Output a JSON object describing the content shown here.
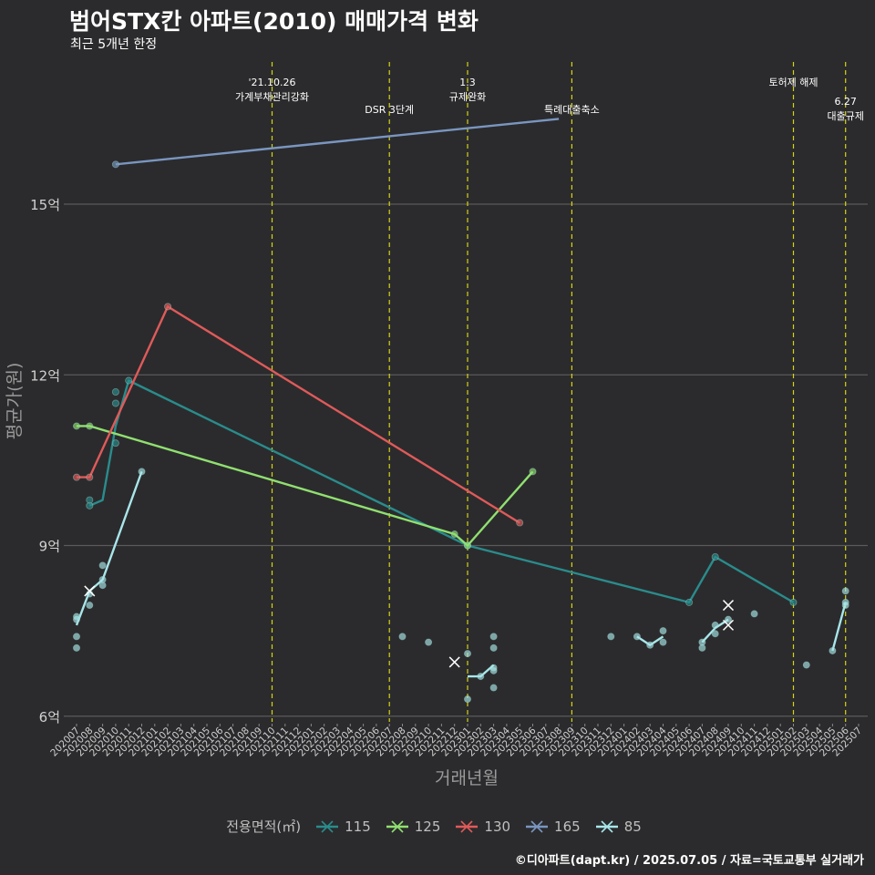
{
  "title": "범어STX칸 아파트(2010) 매매가격 변화",
  "subtitle": "최근 5개년 한정",
  "caption": "©디아파트(dapt.kr) / 2025.07.05 / 자료=국토교통부 실거래가",
  "legend": {
    "title": "전용면적(㎡)",
    "items": [
      {
        "label": "115",
        "color": "#2a8c8c"
      },
      {
        "label": "125",
        "color": "#90e070"
      },
      {
        "label": "130",
        "color": "#e05a5a"
      },
      {
        "label": "165",
        "color": "#7a96c0"
      },
      {
        "label": "85",
        "color": "#a8e6ea"
      }
    ]
  },
  "chart_data": {
    "type": "line",
    "xlabel": "거래년월",
    "ylabel": "평균가(원)",
    "ylim": [
      5.9,
      17.5
    ],
    "yticks": [
      6,
      9,
      12,
      15
    ],
    "ytick_labels": [
      "6억",
      "9억",
      "12억",
      "15억"
    ],
    "grid": true,
    "x": [
      "202007",
      "202008",
      "202009",
      "202010",
      "202011",
      "202012",
      "202101",
      "202102",
      "202103",
      "202104",
      "202105",
      "202106",
      "202107",
      "202108",
      "202109",
      "202110",
      "202111",
      "202112",
      "202201",
      "202202",
      "202203",
      "202204",
      "202205",
      "202206",
      "202207",
      "202208",
      "202209",
      "202210",
      "202211",
      "202212",
      "202301",
      "202302",
      "202303",
      "202304",
      "202305",
      "202306",
      "202307",
      "202308",
      "202309",
      "202310",
      "202311",
      "202312",
      "202401",
      "202402",
      "202403",
      "202404",
      "202405",
      "202406",
      "202407",
      "202408",
      "202409",
      "202410",
      "202411",
      "202412",
      "202501",
      "202502",
      "202503",
      "202504",
      "202505",
      "202506",
      "202507"
    ],
    "annotations": [
      {
        "x": "202110",
        "lines": [
          "'21.10.26",
          "가계부채관리강화"
        ],
        "level": 1
      },
      {
        "x": "202207",
        "lines": [
          "DSR 3단계"
        ],
        "level": 2
      },
      {
        "x": "202301",
        "lines": [
          "1.3",
          "규제완화"
        ],
        "level": 1
      },
      {
        "x": "202309",
        "lines": [
          "특례대출축소"
        ],
        "level": 2
      },
      {
        "x": "202502",
        "lines": [
          "토허제 해제"
        ],
        "level": 1
      },
      {
        "x": "202506",
        "lines": [
          "6.27",
          "대출규제"
        ],
        "level": 3
      }
    ],
    "series": [
      {
        "name": "115",
        "color": "#2a8c8c",
        "line": [
          [
            "202008",
            9.7
          ],
          [
            "202009",
            9.8
          ],
          [
            "202010",
            11.1
          ],
          [
            "202011",
            11.9
          ],
          [
            "202301",
            9.0
          ],
          [
            "202406",
            8.0
          ],
          [
            "202408",
            8.8
          ],
          [
            "202502",
            8.0
          ]
        ],
        "points": [
          [
            "202008",
            9.7
          ],
          [
            "202008",
            9.8
          ],
          [
            "202010",
            10.8
          ],
          [
            "202010",
            11.5
          ],
          [
            "202010",
            11.7
          ],
          [
            "202011",
            11.9
          ],
          [
            "202301",
            9.0
          ],
          [
            "202406",
            8.0
          ],
          [
            "202408",
            8.8
          ],
          [
            "202502",
            8.0
          ]
        ]
      },
      {
        "name": "125",
        "color": "#90e070",
        "line": [
          [
            "202007",
            11.1
          ],
          [
            "202008",
            11.1
          ],
          [
            "202212",
            9.2
          ],
          [
            "202301",
            9.0
          ],
          [
            "202306",
            10.3
          ]
        ],
        "points": [
          [
            "202007",
            11.1
          ],
          [
            "202008",
            11.1
          ],
          [
            "202212",
            9.2
          ],
          [
            "202301",
            9.0
          ],
          [
            "202306",
            10.3
          ]
        ]
      },
      {
        "name": "130",
        "color": "#e05a5a",
        "line": [
          [
            "202007",
            10.2
          ],
          [
            "202008",
            10.2
          ],
          [
            "202102",
            13.2
          ],
          [
            "202305",
            9.4
          ]
        ],
        "points": [
          [
            "202007",
            10.2
          ],
          [
            "202008",
            10.2
          ],
          [
            "202102",
            13.2
          ],
          [
            "202305",
            9.4
          ]
        ]
      },
      {
        "name": "165",
        "color": "#7a96c0",
        "line": [
          [
            "202010",
            15.7
          ],
          [
            "202308",
            16.5
          ]
        ],
        "points": [
          [
            "202010",
            15.7
          ]
        ]
      },
      {
        "name": "85",
        "color": "#a8e6ea",
        "line_segments": [
          [
            [
              "202007",
              7.6
            ],
            [
              "202008",
              8.2
            ],
            [
              "202009",
              8.4
            ],
            [
              "202012",
              10.3
            ]
          ],
          [
            [
              "202301",
              6.7
            ],
            [
              "202302",
              6.7
            ],
            [
              "202303",
              6.9
            ]
          ],
          [
            [
              "202402",
              7.4
            ],
            [
              "202403",
              7.25
            ],
            [
              "202404",
              7.4
            ]
          ],
          [
            [
              "202407",
              7.3
            ],
            [
              "202408",
              7.55
            ],
            [
              "202409",
              7.7
            ]
          ],
          [
            [
              "202505",
              7.15
            ],
            [
              "202506",
              8.0
            ]
          ]
        ],
        "points": [
          [
            "202007",
            7.2
          ],
          [
            "202007",
            7.4
          ],
          [
            "202007",
            7.7
          ],
          [
            "202007",
            7.75
          ],
          [
            "202008",
            7.95
          ],
          [
            "202008",
            8.15
          ],
          [
            "202009",
            8.3
          ],
          [
            "202009",
            8.4
          ],
          [
            "202009",
            8.65
          ],
          [
            "202012",
            10.3
          ],
          [
            "202208",
            7.4
          ],
          [
            "202210",
            7.3
          ],
          [
            "202301",
            6.3
          ],
          [
            "202301",
            7.1
          ],
          [
            "202302",
            6.7
          ],
          [
            "202303",
            6.5
          ],
          [
            "202303",
            6.8
          ],
          [
            "202303",
            6.85
          ],
          [
            "202303",
            7.2
          ],
          [
            "202303",
            7.4
          ],
          [
            "202312",
            7.4
          ],
          [
            "202402",
            7.4
          ],
          [
            "202403",
            7.25
          ],
          [
            "202404",
            7.3
          ],
          [
            "202404",
            7.5
          ],
          [
            "202407",
            7.2
          ],
          [
            "202407",
            7.3
          ],
          [
            "202408",
            7.45
          ],
          [
            "202408",
            7.6
          ],
          [
            "202409",
            7.7
          ],
          [
            "202411",
            7.8
          ],
          [
            "202503",
            6.9
          ],
          [
            "202505",
            7.15
          ],
          [
            "202506",
            7.95
          ],
          [
            "202506",
            8.0
          ],
          [
            "202506",
            8.2
          ]
        ],
        "cancelled": [
          [
            "202008",
            8.2
          ],
          [
            "202212",
            6.95
          ],
          [
            "202409",
            7.6
          ],
          [
            "202409",
            7.95
          ]
        ]
      }
    ]
  }
}
